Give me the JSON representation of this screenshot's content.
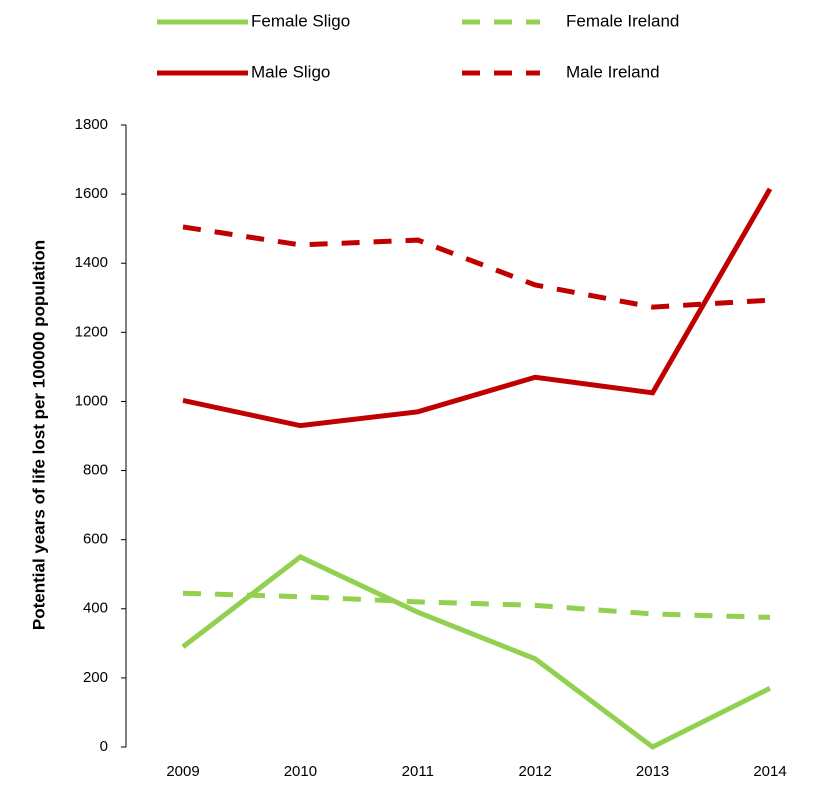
{
  "chart_data": {
    "type": "line",
    "y_label": "Potential years of life lost per 100000 population",
    "categories": [
      "2009",
      "2010",
      "2011",
      "2012",
      "2013",
      "2014"
    ],
    "series": [
      {
        "name": "Female Sligo",
        "color": "#92d050",
        "dash": false,
        "values": [
          290,
          550,
          390,
          255,
          0,
          170
        ]
      },
      {
        "name": "Female Ireland",
        "color": "#92d050",
        "dash": true,
        "values": [
          445,
          435,
          420,
          410,
          385,
          375
        ]
      },
      {
        "name": "Male Sligo",
        "color": "#c00000",
        "dash": false,
        "values": [
          1003,
          930,
          970,
          1070,
          1025,
          1615
        ]
      },
      {
        "name": "Male Ireland",
        "color": "#c00000",
        "dash": true,
        "values": [
          1505,
          1453,
          1467,
          1337,
          1273,
          1293
        ]
      }
    ],
    "ylim": [
      0,
      1800
    ],
    "yticks": [
      0,
      200,
      400,
      600,
      800,
      1000,
      1200,
      1400,
      1600,
      1800
    ]
  }
}
